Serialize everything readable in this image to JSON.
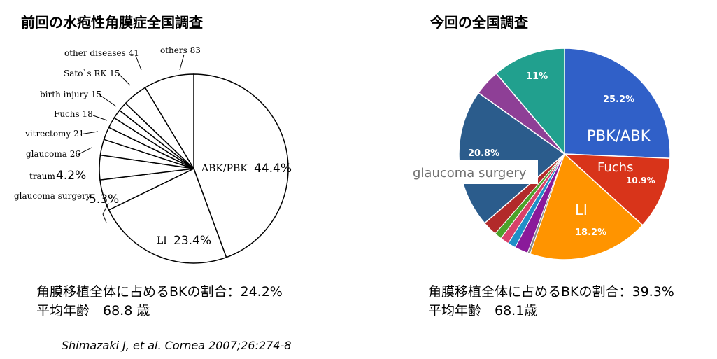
{
  "left_title": "前回の水疱性角膜症全国調査",
  "right_title": "今回の全国調査",
  "left_stats": {
    "line1": "角膜移植全体に占めるBKの割合：24.2%",
    "line2": "平均年齢　68.8 歳"
  },
  "right_stats": {
    "line1": "角膜移植全体に占めるBKの割合：39.3%",
    "line2": "平均年齢　68.1歳"
  },
  "citation": "Shimazaki J, et al. Cornea 2007;26:274-8",
  "chart_data": [
    {
      "type": "pie",
      "style": "black outline, white fill",
      "slices": [
        {
          "label": "ABK/PBK",
          "percent_label": "44.4%",
          "value": 44.4
        },
        {
          "label": "LI",
          "percent_label": "23.4%",
          "value": 23.4
        },
        {
          "label": "glaucoma surgery",
          "percent_label": "5.3%",
          "value": 5.3
        },
        {
          "label": "trauma",
          "printed": "traum",
          "percent_label": "4.2%",
          "value": 4.2
        },
        {
          "label": "glaucoma 26",
          "value": 26
        },
        {
          "label": "vitrectomy 21",
          "value": 21
        },
        {
          "label": "Fuchs 18",
          "value": 18
        },
        {
          "label": "birth injury 15",
          "value": 15
        },
        {
          "label": "Sato`s RK 15",
          "value": 15
        },
        {
          "label": "other diseases 41",
          "value": 41
        },
        {
          "label": "others 83",
          "value": 83
        }
      ]
    },
    {
      "type": "pie",
      "slices": [
        {
          "label": "PBK/ABK",
          "percent_label": "25.2%",
          "value": 25.2,
          "color": "#3060C8"
        },
        {
          "label": "Fuchs",
          "percent_label": "10.9%",
          "value": 10.9,
          "color": "#D8341A"
        },
        {
          "label": "LI",
          "percent_label": "18.2%",
          "value": 18.2,
          "color": "#FF9400"
        },
        {
          "label": "",
          "value": 0.4,
          "color": "#8A8A8A"
        },
        {
          "label": "",
          "value": 2.0,
          "color": "#8A1A9A"
        },
        {
          "label": "",
          "value": 1.2,
          "color": "#1F8FC8"
        },
        {
          "label": "",
          "value": 1.3,
          "color": "#D8406A"
        },
        {
          "label": "",
          "value": 1.1,
          "color": "#4CA22A"
        },
        {
          "label": "",
          "value": 2.2,
          "color": "#B22A2A"
        },
        {
          "label": "glaucoma surgery",
          "percent_label": "20.8%",
          "value": 20.8,
          "color": "#2B5C8C"
        },
        {
          "label": "",
          "value": 3.9,
          "color": "#8E3F96"
        },
        {
          "label": "",
          "percent_label": "11%",
          "value": 11.0,
          "color": "#21A08E"
        }
      ]
    }
  ]
}
